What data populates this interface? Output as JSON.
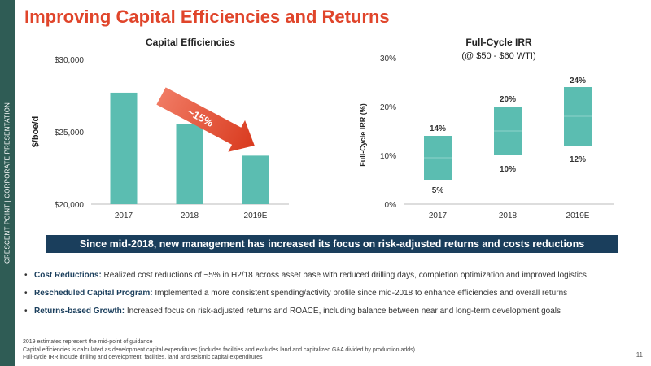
{
  "sidebar_text": "CRESCENT POINT   |   CORPORATE PRESENTATION",
  "title": "Improving Capital Efficiencies and Returns",
  "banner": "Since mid-2018, new management has increased its focus on risk-adjusted returns and costs reductions",
  "bullets": [
    {
      "label": "Cost Reductions:",
      "text": " Realized cost reductions of ~5% in H2/18 across asset base with reduced drilling days, completion optimization and improved logistics"
    },
    {
      "label": "Rescheduled Capital Program:",
      "text": " Implemented a more consistent spending/activity profile since mid-2018 to enhance efficiencies and overall returns"
    },
    {
      "label": "Returns-based Growth:",
      "text": " Increased focus on risk-adjusted returns and ROACE, including balance between near and long-term development goals"
    }
  ],
  "footnotes": [
    "2019 estimates represent the mid-point of guidance",
    "Capital efficiencies is calculated as development capital expenditures (includes facilities and excludes land and capitalized G&A divided by production adds)",
    "Full-cycle IRR include drilling and development, facilities, land and seismic capital expenditures"
  ],
  "page_number": "11",
  "colors": {
    "bar": "#5bbdb1",
    "accent": "#e0452b",
    "banner": "#1a3e5c",
    "sidebar": "#2f5c55"
  },
  "chart_data": [
    {
      "type": "bar",
      "title": "Capital Efficiencies",
      "ylabel": "$/boe/d",
      "categories": [
        "2017",
        "2018",
        "2019E"
      ],
      "values": [
        27700,
        25550,
        23350
      ],
      "ylim": [
        20000,
        30000
      ],
      "yticks": [
        20000,
        25000,
        30000
      ],
      "ytick_labels": [
        "$20,000",
        "$25,000",
        "$30,000"
      ],
      "annotation": "~15%",
      "grid": false
    },
    {
      "type": "bar",
      "title": "Full-Cycle IRR",
      "subtitle": "(@ $50 - $60 WTI)",
      "ylabel": "Full-Cycle IRR (%)",
      "categories": [
        "2017",
        "2018",
        "2019E"
      ],
      "low": [
        5,
        10,
        12
      ],
      "high": [
        14,
        20,
        24
      ],
      "low_labels": [
        "5%",
        "10%",
        "12%"
      ],
      "high_labels": [
        "14%",
        "20%",
        "24%"
      ],
      "ylim": [
        0,
        30
      ],
      "yticks": [
        0,
        10,
        20,
        30
      ],
      "ytick_labels": [
        "0%",
        "10%",
        "20%",
        "30%"
      ],
      "grid": false
    }
  ]
}
